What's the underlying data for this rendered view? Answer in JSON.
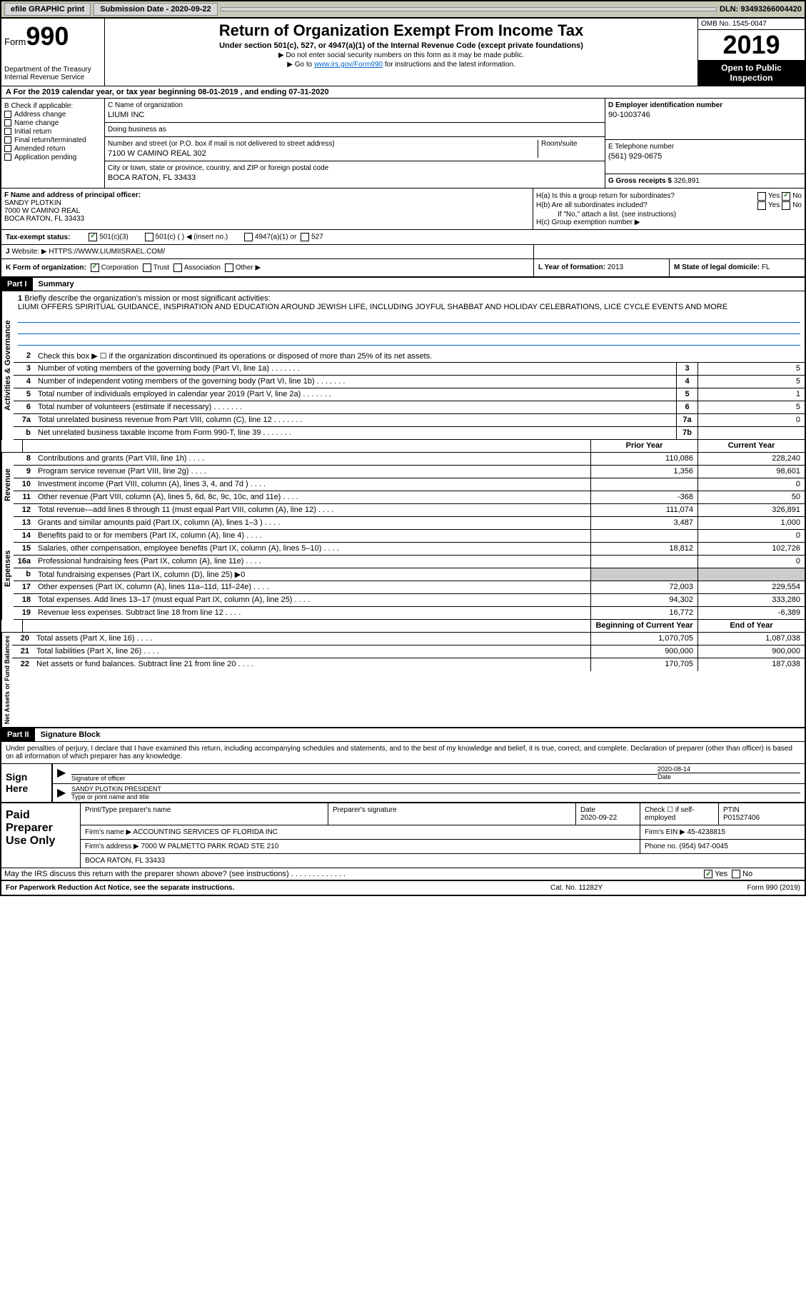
{
  "topbar": {
    "efile": "efile GRAPHIC print",
    "subdate_label": "Submission Date - 2020-09-22",
    "dln": "DLN: 93493266004420"
  },
  "header": {
    "form": "Form",
    "num": "990",
    "dept": "Department of the Treasury\nInternal Revenue Service",
    "title": "Return of Organization Exempt From Income Tax",
    "subtitle": "Under section 501(c), 527, or 4947(a)(1) of the Internal Revenue Code (except private foundations)",
    "note1": "▶ Do not enter social security numbers on this form as it may be made public.",
    "note2_pre": "▶ Go to ",
    "note2_link": "www.irs.gov/Form990",
    "note2_post": " for instructions and the latest information.",
    "omb": "OMB No. 1545-0047",
    "year": "2019",
    "inspect": "Open to Public Inspection"
  },
  "period": "A For the 2019 calendar year, or tax year beginning 08-01-2019   , and ending 07-31-2020",
  "boxB": {
    "label": "B Check if applicable:",
    "items": [
      "Address change",
      "Name change",
      "Initial return",
      "Final return/terminated",
      "Amended return",
      "Application pending"
    ]
  },
  "boxC": {
    "name_label": "C Name of organization",
    "name": "LIUMI INC",
    "dba_label": "Doing business as",
    "addr_label": "Number and street (or P.O. box if mail is not delivered to street address)",
    "room_label": "Room/suite",
    "addr": "7100 W CAMINO REAL 302",
    "city_label": "City or town, state or province, country, and ZIP or foreign postal code",
    "city": "BOCA RATON, FL  33433"
  },
  "boxD": {
    "label": "D Employer identification number",
    "val": "90-1003746"
  },
  "boxE": {
    "label": "E Telephone number",
    "val": "(561) 929-0675"
  },
  "boxG": {
    "label": "G Gross receipts $",
    "val": "326,891"
  },
  "boxF": {
    "label": "F  Name and address of principal officer:",
    "name": "SANDY PLOTKIN",
    "addr1": "7000 W CAMINO REAL",
    "addr2": "BOCA RATON, FL  33433"
  },
  "boxH": {
    "a": "H(a)  Is this a group return for subordinates?",
    "b": "H(b)  Are all subordinates included?",
    "note": "If \"No,\" attach a list. (see instructions)",
    "c": "H(c)  Group exemption number ▶"
  },
  "taxstatus": {
    "label": "Tax-exempt status:",
    "c3": "501(c)(3)",
    "c": "501(c) (  ) ◀ (insert no.)",
    "a1": "4947(a)(1) or",
    "s527": "527"
  },
  "boxJ": {
    "label": "J",
    "text": "Website: ▶",
    "val": "HTTPS://WWW.LIUMIISRAEL.COM/"
  },
  "boxK": {
    "label": "K Form of organization:",
    "corp": "Corporation",
    "trust": "Trust",
    "assoc": "Association",
    "other": "Other ▶"
  },
  "boxL": {
    "label": "L Year of formation:",
    "val": "2013"
  },
  "boxM": {
    "label": "M State of legal domicile:",
    "val": "FL"
  },
  "part1": {
    "num": "Part I",
    "title": "Summary"
  },
  "sections": {
    "gov": "Activities & Governance",
    "rev": "Revenue",
    "exp": "Expenses",
    "net": "Net Assets or Fund Balances"
  },
  "brief": {
    "num": "1",
    "label": "Briefly describe the organization's mission or most significant activities:",
    "text": "LIUMI OFFERS SPIRITUAL GUIDANCE, INSPIRATION AND EDUCATION AROUND JEWISH LIFE, INCLUDING JOYFUL SHABBAT AND HOLIDAY CELEBRATIONS, LICE CYCLE EVENTS AND MORE"
  },
  "lines_gov": [
    {
      "n": "2",
      "t": "Check this box ▶ ☐  if the organization discontinued its operations or disposed of more than 25% of its net assets."
    },
    {
      "n": "3",
      "t": "Number of voting members of the governing body (Part VI, line 1a)",
      "box": "3",
      "v": "5"
    },
    {
      "n": "4",
      "t": "Number of independent voting members of the governing body (Part VI, line 1b)",
      "box": "4",
      "v": "5"
    },
    {
      "n": "5",
      "t": "Total number of individuals employed in calendar year 2019 (Part V, line 2a)",
      "box": "5",
      "v": "1"
    },
    {
      "n": "6",
      "t": "Total number of volunteers (estimate if necessary)",
      "box": "6",
      "v": "5"
    },
    {
      "n": "7a",
      "t": "Total unrelated business revenue from Part VIII, column (C), line 12",
      "box": "7a",
      "v": "0"
    },
    {
      "n": "b",
      "t": "Net unrelated business taxable income from Form 990-T, line 39",
      "box": "7b",
      "v": ""
    }
  ],
  "colhdrs": {
    "prior": "Prior Year",
    "current": "Current Year"
  },
  "lines_rev": [
    {
      "n": "8",
      "t": "Contributions and grants (Part VIII, line 1h)",
      "p": "110,086",
      "c": "228,240"
    },
    {
      "n": "9",
      "t": "Program service revenue (Part VIII, line 2g)",
      "p": "1,356",
      "c": "98,601"
    },
    {
      "n": "10",
      "t": "Investment income (Part VIII, column (A), lines 3, 4, and 7d )",
      "p": "",
      "c": "0"
    },
    {
      "n": "11",
      "t": "Other revenue (Part VIII, column (A), lines 5, 6d, 8c, 9c, 10c, and 11e)",
      "p": "-368",
      "c": "50"
    },
    {
      "n": "12",
      "t": "Total revenue—add lines 8 through 11 (must equal Part VIII, column (A), line 12)",
      "p": "111,074",
      "c": "326,891"
    }
  ],
  "lines_exp": [
    {
      "n": "13",
      "t": "Grants and similar amounts paid (Part IX, column (A), lines 1–3 )",
      "p": "3,487",
      "c": "1,000"
    },
    {
      "n": "14",
      "t": "Benefits paid to or for members (Part IX, column (A), line 4)",
      "p": "",
      "c": "0"
    },
    {
      "n": "15",
      "t": "Salaries, other compensation, employee benefits (Part IX, column (A), lines 5–10)",
      "p": "18,812",
      "c": "102,726"
    },
    {
      "n": "16a",
      "t": "Professional fundraising fees (Part IX, column (A), line 11e)",
      "p": "",
      "c": "0"
    },
    {
      "n": "b",
      "t": "Total fundraising expenses (Part IX, column (D), line 25) ▶0",
      "shade": true
    },
    {
      "n": "17",
      "t": "Other expenses (Part IX, column (A), lines 11a–11d, 11f–24e)",
      "p": "72,003",
      "c": "229,554"
    },
    {
      "n": "18",
      "t": "Total expenses. Add lines 13–17 (must equal Part IX, column (A), line 25)",
      "p": "94,302",
      "c": "333,280"
    },
    {
      "n": "19",
      "t": "Revenue less expenses. Subtract line 18 from line 12",
      "p": "16,772",
      "c": "-6,389"
    }
  ],
  "colhdrs2": {
    "beg": "Beginning of Current Year",
    "end": "End of Year"
  },
  "lines_net": [
    {
      "n": "20",
      "t": "Total assets (Part X, line 16)",
      "p": "1,070,705",
      "c": "1,087,038"
    },
    {
      "n": "21",
      "t": "Total liabilities (Part X, line 26)",
      "p": "900,000",
      "c": "900,000"
    },
    {
      "n": "22",
      "t": "Net assets or fund balances. Subtract line 21 from line 20",
      "p": "170,705",
      "c": "187,038"
    }
  ],
  "part2": {
    "num": "Part II",
    "title": "Signature Block"
  },
  "sig": {
    "penalty": "Under penalties of perjury, I declare that I have examined this return, including accompanying schedules and statements, and to the best of my knowledge and belief, it is true, correct, and complete. Declaration of preparer (other than officer) is based on all information of which preparer has any knowledge.",
    "sign_here": "Sign Here",
    "sig_officer": "Signature of officer",
    "date": "Date",
    "date_val": "2020-08-14",
    "name": "SANDY PLOTKIN  PRESIDENT",
    "name_label": "Type or print name and title"
  },
  "prep": {
    "label": "Paid Preparer Use Only",
    "pname": "Print/Type preparer's name",
    "psig": "Preparer's signature",
    "pdate": "Date",
    "pdate_val": "2020-09-22",
    "check": "Check ☐ if self-employed",
    "ptin": "PTIN",
    "ptin_val": "P01527406",
    "firm": "Firm's name    ▶",
    "firm_val": "ACCOUNTING SERVICES OF FLORIDA INC",
    "ein": "Firm's EIN ▶",
    "ein_val": "45-4238815",
    "addr": "Firm's address ▶",
    "addr_val": "7000 W PALMETTO PARK ROAD STE 210",
    "addr2": "BOCA RATON, FL  33433",
    "phone": "Phone no.",
    "phone_val": "(954) 947-0045"
  },
  "discuss": "May the IRS discuss this return with the preparer shown above? (see instructions)",
  "footer": {
    "left": "For Paperwork Reduction Act Notice, see the separate instructions.",
    "mid": "Cat. No. 11282Y",
    "right": "Form 990 (2019)"
  }
}
